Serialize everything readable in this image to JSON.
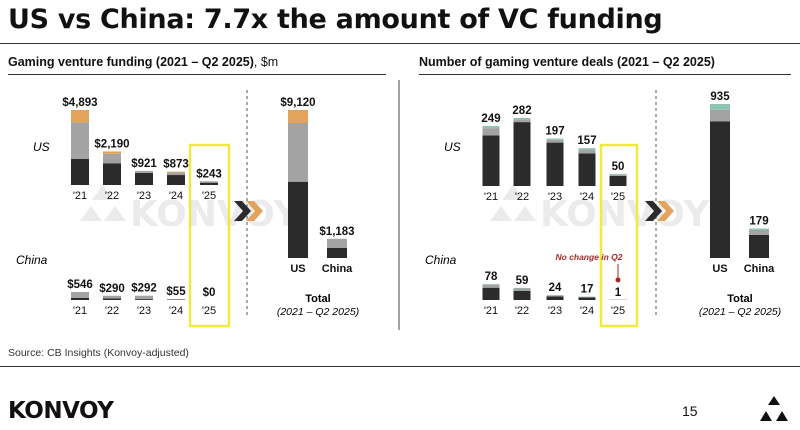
{
  "title": "US vs China: 7.7x the amount of VC funding",
  "charts": [
    {
      "subtitle": "Gaming venture funding (2021 – Q2 2025)",
      "unit": ", $m"
    },
    {
      "subtitle": "Number of gaming venture deals (2021 – Q2 2025)",
      "unit": ""
    }
  ],
  "source": "Source: CB Insights (Konvoy-adjusted)",
  "logo": "KONVOY",
  "watermark": "KONVOY",
  "page_number": "15",
  "region_labels": {
    "us": "US",
    "china": "China"
  },
  "total_label": "Total",
  "total_sublabel": "(2021 – Q2 2025)",
  "total_categories": [
    "US",
    "China"
  ],
  "colors": {
    "dark": "#2b2b2b",
    "gray": "#a3a3a3",
    "orange": "#e3a35a",
    "teal": "#8fc4b4",
    "highlight": "#f1ea3c",
    "chevron": "#e3a35a"
  },
  "chart_data": [
    {
      "type": "bar",
      "stacked": true,
      "region": "US",
      "categories": [
        "'21",
        "'22",
        "'23",
        "'24",
        "'25"
      ],
      "labels": [
        "$4,893",
        "$2,190",
        "$921",
        "$873",
        "$243"
      ],
      "values": [
        4893,
        2190,
        921,
        873,
        243
      ],
      "segments": [
        [
          1700,
          2393,
          800,
          0
        ],
        [
          1420,
          620,
          150,
          0
        ],
        [
          790,
          131,
          0,
          0
        ],
        [
          650,
          173,
          50,
          0
        ],
        [
          150,
          93,
          0,
          0
        ]
      ]
    },
    {
      "type": "bar",
      "stacked": true,
      "region": "China",
      "categories": [
        "'21",
        "'22",
        "'23",
        "'24",
        "'25"
      ],
      "labels": [
        "$546",
        "$290",
        "$292",
        "$55",
        "$0"
      ],
      "values": [
        546,
        290,
        292,
        55,
        0
      ],
      "segments": [
        [
          150,
          396,
          0,
          0
        ],
        [
          100,
          190,
          0,
          0
        ],
        [
          60,
          232,
          0,
          0
        ],
        [
          30,
          25,
          0,
          0
        ],
        [
          0,
          0,
          0,
          0
        ]
      ]
    },
    {
      "type": "bar",
      "stacked": true,
      "region": "Total",
      "categories": [
        "US",
        "China"
      ],
      "labels": [
        "$9,120",
        "$1,183"
      ],
      "values": [
        9120,
        1183
      ],
      "segments": [
        [
          4700,
          3620,
          800,
          0
        ],
        [
          620,
          563,
          0,
          0
        ]
      ]
    },
    {
      "type": "bar",
      "stacked": true,
      "region": "US",
      "categories": [
        "'21",
        "'22",
        "'23",
        "'24",
        "'25"
      ],
      "labels": [
        "249",
        "282",
        "197",
        "157",
        "50"
      ],
      "values": [
        249,
        282,
        197,
        157,
        50
      ],
      "segments": [
        [
          210,
          30,
          0,
          9
        ],
        [
          265,
          12,
          0,
          5
        ],
        [
          180,
          12,
          0,
          5
        ],
        [
          135,
          17,
          0,
          5
        ],
        [
          42,
          5,
          0,
          3
        ]
      ]
    },
    {
      "type": "bar",
      "stacked": true,
      "region": "China",
      "categories": [
        "'21",
        "'22",
        "'23",
        "'24",
        "'25"
      ],
      "labels": [
        "78",
        "59",
        "24",
        "17",
        "1"
      ],
      "values": [
        78,
        59,
        24,
        17,
        1
      ],
      "segments": [
        [
          60,
          14,
          0,
          4
        ],
        [
          45,
          11,
          0,
          3
        ],
        [
          17,
          6,
          0,
          1
        ],
        [
          12,
          4,
          0,
          1
        ],
        [
          1,
          0,
          0,
          0
        ]
      ]
    },
    {
      "type": "bar",
      "stacked": true,
      "region": "Total",
      "categories": [
        "US",
        "China"
      ],
      "labels": [
        "935",
        "179"
      ],
      "values": [
        935,
        179
      ],
      "segments": [
        [
          830,
          70,
          0,
          35
        ],
        [
          140,
          30,
          0,
          9
        ]
      ]
    }
  ],
  "annotation": {
    "text": "No change in Q2"
  }
}
